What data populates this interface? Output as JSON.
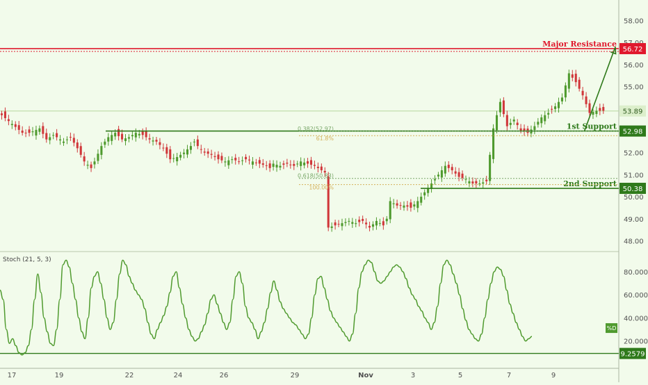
{
  "chart_data": [
    {
      "type": "candlestick",
      "title": "",
      "price_axis": {
        "ylim": [
          47.7,
          58.8
        ],
        "ticks": [
          "48.00",
          "49.00",
          "50.00",
          "51.00",
          "52.00",
          "53.00",
          "54.00",
          "55.00",
          "56.00",
          "57.00",
          "58.00"
        ]
      },
      "x_axis": {
        "ticks": [
          "17",
          "19",
          "22",
          "24",
          "26",
          "29",
          "Nov",
          "3",
          "5",
          "7",
          "9"
        ]
      },
      "close_path": [
        [
          0,
          53.7
        ],
        [
          3,
          53.3
        ],
        [
          6,
          52.9
        ],
        [
          8,
          52.9
        ],
        [
          11,
          53.1
        ],
        [
          13,
          52.6
        ],
        [
          15,
          52.8
        ],
        [
          18,
          52.5
        ],
        [
          20,
          52.7
        ],
        [
          22,
          52.2
        ],
        [
          24,
          51.6
        ],
        [
          26,
          51.3
        ],
        [
          27,
          51.6
        ],
        [
          29,
          52.3
        ],
        [
          31,
          52.7
        ],
        [
          33,
          52.9
        ],
        [
          35,
          52.6
        ],
        [
          37,
          52.7
        ],
        [
          39,
          52.9
        ],
        [
          41,
          52.8
        ],
        [
          43,
          52.6
        ],
        [
          45,
          52.5
        ],
        [
          47,
          52.2
        ],
        [
          49,
          51.7
        ],
        [
          51,
          51.8
        ],
        [
          53,
          52.0
        ],
        [
          55,
          52.3
        ],
        [
          56,
          52.5
        ],
        [
          57,
          52.3
        ],
        [
          59,
          52.0
        ],
        [
          61,
          51.9
        ],
        [
          63,
          51.7
        ],
        [
          65,
          51.6
        ],
        [
          67,
          51.7
        ],
        [
          69,
          51.6
        ],
        [
          71,
          51.7
        ],
        [
          73,
          51.6
        ],
        [
          75,
          51.5
        ],
        [
          77,
          51.4
        ],
        [
          78,
          51.3
        ],
        [
          79,
          51.5
        ],
        [
          81,
          51.4
        ],
        [
          83,
          51.5
        ],
        [
          85,
          51.4
        ],
        [
          87,
          51.6
        ],
        [
          89,
          51.5
        ],
        [
          91,
          51.4
        ],
        [
          93,
          51.2
        ],
        [
          94,
          51.1
        ],
        [
          95,
          48.6
        ],
        [
          97,
          48.7
        ],
        [
          99,
          48.8
        ],
        [
          101,
          48.9
        ],
        [
          103,
          48.8
        ],
        [
          105,
          48.9
        ],
        [
          107,
          48.6
        ],
        [
          109,
          48.9
        ],
        [
          111,
          48.7
        ],
        [
          112,
          49.0
        ],
        [
          113,
          49.8
        ],
        [
          115,
          49.6
        ],
        [
          117,
          49.6
        ],
        [
          119,
          49.5
        ],
        [
          121,
          49.8
        ],
        [
          123,
          50.2
        ],
        [
          125,
          50.6
        ],
        [
          127,
          51.0
        ],
        [
          129,
          51.4
        ],
        [
          130,
          51.3
        ],
        [
          131,
          51.2
        ],
        [
          133,
          50.9
        ],
        [
          135,
          50.8
        ],
        [
          137,
          50.6
        ],
        [
          139,
          50.6
        ],
        [
          141,
          50.7
        ],
        [
          143,
          53.1
        ],
        [
          145,
          54.3
        ],
        [
          147,
          53.2
        ],
        [
          149,
          53.5
        ],
        [
          151,
          53.0
        ],
        [
          153,
          52.9
        ],
        [
          155,
          53.2
        ],
        [
          157,
          53.6
        ],
        [
          159,
          53.8
        ],
        [
          161,
          54.1
        ],
        [
          163,
          54.5
        ],
        [
          165,
          55.6
        ],
        [
          167,
          55.2
        ],
        [
          169,
          54.6
        ],
        [
          171,
          53.8
        ],
        [
          173,
          53.9
        ],
        [
          175,
          53.9
        ]
      ],
      "levels": [
        {
          "label": "Major Resistance",
          "value": 56.72,
          "tag": "56.72",
          "color": "#e0192d"
        },
        {
          "label": "1st Support",
          "value": 52.98,
          "tag": "52.98",
          "color": "#2f7a1b"
        },
        {
          "label": "2nd Support",
          "value": 50.38,
          "tag": "50.38",
          "color": "#2f7a1b"
        }
      ],
      "last_price": {
        "value": 53.89,
        "tag": "53.89"
      },
      "fibonacci": [
        {
          "label": "0.382(52.97)",
          "value": 52.97
        },
        {
          "label": "61.8%",
          "value": 52.77
        },
        {
          "label": "0.618(50.83)",
          "value": 50.83
        },
        {
          "label": "100.00%",
          "value": 50.55
        }
      ],
      "arrow": {
        "from": [
          170,
          52.98
        ],
        "to": [
          179,
          56.8
        ]
      }
    },
    {
      "type": "line",
      "title": "Stoch (21, 5, 3)",
      "series": [
        {
          "name": "%D",
          "color": "#4f9a2e",
          "values": [
            64,
            56,
            30,
            18,
            22,
            16,
            10,
            8,
            10,
            16,
            30,
            56,
            78,
            62,
            40,
            28,
            18,
            16,
            30,
            56,
            86,
            90,
            84,
            70,
            56,
            40,
            28,
            22,
            40,
            66,
            76,
            80,
            70,
            56,
            40,
            30,
            36,
            56,
            78,
            90,
            86,
            76,
            70,
            64,
            60,
            56,
            48,
            36,
            26,
            22,
            30,
            36,
            42,
            50,
            62,
            76,
            80,
            66,
            52,
            40,
            30,
            24,
            20,
            22,
            28,
            34,
            44,
            56,
            60,
            52,
            44,
            36,
            30,
            36,
            56,
            76,
            80,
            70,
            50,
            40,
            36,
            30,
            22,
            28,
            36,
            48,
            62,
            72,
            64,
            54,
            48,
            44,
            40,
            36,
            34,
            30,
            26,
            22,
            26,
            40,
            60,
            74,
            76,
            66,
            56,
            46,
            40,
            36,
            32,
            28,
            24,
            20,
            26,
            44,
            66,
            80,
            86,
            90,
            88,
            80,
            72,
            70,
            72,
            76,
            80,
            84,
            86,
            84,
            80,
            74,
            66,
            60,
            56,
            50,
            46,
            40,
            36,
            30,
            36,
            50,
            70,
            86,
            90,
            86,
            78,
            70,
            60,
            48,
            38,
            30,
            26,
            22,
            20,
            26,
            40,
            56,
            70,
            80,
            84,
            82,
            76,
            64,
            52,
            44,
            36,
            30,
            24,
            20,
            22,
            24
          ]
        }
      ],
      "ylim": [
        0,
        95
      ],
      "ticks": [
        "20.0000",
        "40.0000",
        "60.0000",
        "80.0000"
      ],
      "level": {
        "value": 9.2579,
        "tag": "9.2579"
      },
      "marker_tag": "%D"
    }
  ],
  "colors": {
    "background": "#f2fbeb",
    "up": "#4f9a2e",
    "down": "#d0373a",
    "axis_text": "#505050"
  }
}
